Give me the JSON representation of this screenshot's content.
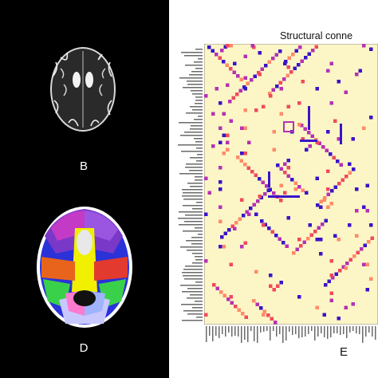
{
  "panels": [
    {
      "letter": "B"
    },
    {
      "letter": "D"
    },
    {
      "letter": "E"
    }
  ],
  "matrix": {
    "title": "Structural conne",
    "colors": {
      "background": "#fcf6c6",
      "frame": "#8a8a8a",
      "strong": "#3a14c8",
      "medium": "#b531b4",
      "weak": "#f04a5e",
      "weakest": "#ff8a6a"
    }
  },
  "brain_colors": [
    "#2a32d8",
    "#7a38c8",
    "#c23ac6",
    "#f0f000",
    "#e8641c",
    "#e23a2e",
    "#3ad14a",
    "#9fb3ff",
    "#c8c8ff",
    "#ff7bd0"
  ]
}
